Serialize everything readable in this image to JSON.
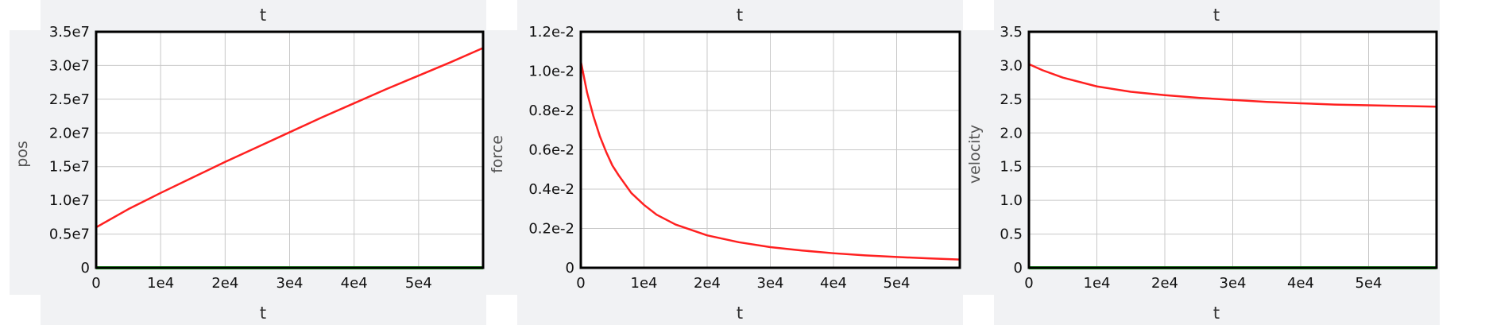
{
  "chart_data": [
    {
      "type": "line",
      "title": "t",
      "xlabel": "t",
      "ylabel": "pos",
      "xlim": [
        0,
        60000
      ],
      "ylim": [
        0,
        35000000
      ],
      "x_ticks": [
        "0",
        "1e4",
        "2e4",
        "3e4",
        "4e4",
        "5e4"
      ],
      "x_tick_values": [
        0,
        10000,
        20000,
        30000,
        40000,
        50000
      ],
      "y_ticks": [
        "0",
        "0.5e7",
        "1.0e7",
        "1.5e7",
        "2.0e7",
        "2.5e7",
        "3.0e7",
        "3.5e7"
      ],
      "y_tick_values": [
        0,
        5000000,
        10000000,
        15000000,
        20000000,
        25000000,
        30000000,
        35000000
      ],
      "grid": true,
      "series": [
        {
          "color": "#ff2020",
          "x": [
            0,
            5000,
            10000,
            15000,
            20000,
            25000,
            30000,
            35000,
            40000,
            45000,
            50000,
            55000,
            60000
          ],
          "values": [
            6000000,
            8700000,
            11100000,
            13400000,
            15700000,
            17900000,
            20100000,
            22300000,
            24400000,
            26500000,
            28500000,
            30500000,
            32600000
          ]
        },
        {
          "color": "#22cc22",
          "x": [
            0,
            60000
          ],
          "values": [
            0,
            0
          ]
        }
      ]
    },
    {
      "type": "line",
      "title": "t",
      "xlabel": "t",
      "ylabel": "force",
      "xlim": [
        0,
        60000
      ],
      "ylim": [
        0,
        0.012
      ],
      "x_ticks": [
        "0",
        "1e4",
        "2e4",
        "3e4",
        "4e4",
        "5e4"
      ],
      "x_tick_values": [
        0,
        10000,
        20000,
        30000,
        40000,
        50000
      ],
      "y_ticks": [
        "0",
        "0.2e-2",
        "0.4e-2",
        "0.6e-2",
        "0.8e-2",
        "1.0e-2",
        "1.2e-2"
      ],
      "y_tick_values": [
        0,
        0.002,
        0.004,
        0.006,
        0.008,
        0.01,
        0.012
      ],
      "grid": true,
      "series": [
        {
          "color": "#ff2020",
          "x": [
            0,
            1000,
            2000,
            3000,
            4000,
            5000,
            6000,
            8000,
            10000,
            12000,
            15000,
            20000,
            25000,
            30000,
            35000,
            40000,
            45000,
            50000,
            55000,
            60000
          ],
          "values": [
            0.0105,
            0.0089,
            0.0077,
            0.0067,
            0.0059,
            0.0052,
            0.0047,
            0.0038,
            0.0032,
            0.0027,
            0.0022,
            0.00165,
            0.0013,
            0.00105,
            0.00088,
            0.00074,
            0.00063,
            0.00055,
            0.00048,
            0.00042
          ]
        }
      ]
    },
    {
      "type": "line",
      "title": "t",
      "xlabel": "t",
      "ylabel": "velocity",
      "xlim": [
        0,
        60000
      ],
      "ylim": [
        0,
        3.5
      ],
      "x_ticks": [
        "0",
        "1e4",
        "2e4",
        "3e4",
        "4e4",
        "5e4"
      ],
      "x_tick_values": [
        0,
        10000,
        20000,
        30000,
        40000,
        50000
      ],
      "y_ticks": [
        "0",
        "0.5",
        "1.0",
        "1.5",
        "2.0",
        "2.5",
        "3.0",
        "3.5"
      ],
      "y_tick_values": [
        0,
        0.5,
        1.0,
        1.5,
        2.0,
        2.5,
        3.0,
        3.5
      ],
      "grid": true,
      "series": [
        {
          "color": "#ff2020",
          "x": [
            0,
            2000,
            5000,
            10000,
            15000,
            20000,
            25000,
            30000,
            35000,
            40000,
            45000,
            50000,
            55000,
            60000
          ],
          "values": [
            3.02,
            2.93,
            2.82,
            2.69,
            2.61,
            2.56,
            2.52,
            2.49,
            2.46,
            2.44,
            2.42,
            2.41,
            2.4,
            2.39
          ]
        },
        {
          "color": "#22cc22",
          "x": [
            0,
            60000
          ],
          "values": [
            0,
            0
          ]
        }
      ]
    }
  ]
}
